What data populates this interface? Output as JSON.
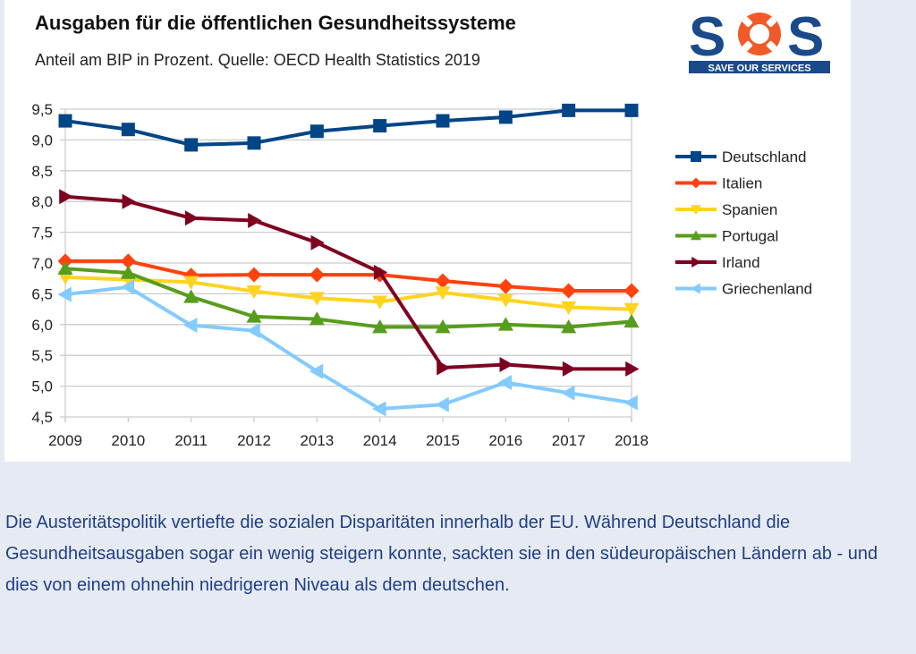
{
  "header": {
    "title": "Ausgaben für die öffentlichen Gesundheitssysteme",
    "subtitle": "Anteil am BIP in Prozent. Quelle: OECD Health Statistics 2019"
  },
  "logo": {
    "text": "SOS",
    "tagline": "SAVE OUR SERVICES",
    "colors": {
      "blue": "#1a4a8a",
      "orange": "#f05a28"
    }
  },
  "caption": "Die Austeritätspolitik vertiefte die sozialen Disparitäten innerhalb der EU. Während Deutschland die Gesundheitsausgaben sogar ein wenig steigern konnte, sackten sie in den südeuropäischen Ländern ab - und dies von einem ohnehin niedrigeren Niveau als dem deutschen.",
  "chart_data": {
    "type": "line",
    "title": "Ausgaben für die öffentlichen Gesundheitssysteme",
    "subtitle": "Anteil am BIP in Prozent. Quelle: OECD Health Statistics 2019",
    "xlabel": "",
    "ylabel": "",
    "x": [
      "2009",
      "2010",
      "2011",
      "2012",
      "2013",
      "2014",
      "2015",
      "2016",
      "2017",
      "2018"
    ],
    "ylim": [
      4.5,
      9.5
    ],
    "yticks": [
      "9,5",
      "9,0",
      "8,5",
      "8,0",
      "7,5",
      "7,0",
      "6,5",
      "6,0",
      "5,5",
      "5,0",
      "4,5"
    ],
    "grid": true,
    "legend_position": "right",
    "series": [
      {
        "name": "Deutschland",
        "color": "#004586",
        "marker": "square",
        "values": [
          9.31,
          9.17,
          8.92,
          8.95,
          9.14,
          9.23,
          9.31,
          9.37,
          9.48,
          9.48
        ]
      },
      {
        "name": "Italien",
        "color": "#ff420e",
        "marker": "diamond",
        "values": [
          7.03,
          7.03,
          6.8,
          6.81,
          6.81,
          6.81,
          6.71,
          6.62,
          6.55,
          6.55
        ]
      },
      {
        "name": "Spanien",
        "color": "#ffd320",
        "marker": "triangle-down",
        "values": [
          6.77,
          6.73,
          6.69,
          6.54,
          6.43,
          6.37,
          6.52,
          6.4,
          6.28,
          6.25
        ]
      },
      {
        "name": "Portugal",
        "color": "#579d1c",
        "marker": "triangle-up",
        "values": [
          6.91,
          6.84,
          6.45,
          6.13,
          6.09,
          5.96,
          5.96,
          6.0,
          5.96,
          6.05
        ]
      },
      {
        "name": "Irland",
        "color": "#7e0021",
        "marker": "triangle-right",
        "values": [
          8.08,
          8.0,
          7.73,
          7.69,
          7.33,
          6.85,
          5.3,
          5.35,
          5.28,
          5.28
        ]
      },
      {
        "name": "Griechenland",
        "color": "#83caff",
        "marker": "triangle-left",
        "values": [
          6.49,
          6.61,
          5.99,
          5.9,
          5.24,
          4.63,
          4.7,
          5.06,
          4.89,
          4.73
        ]
      }
    ]
  }
}
